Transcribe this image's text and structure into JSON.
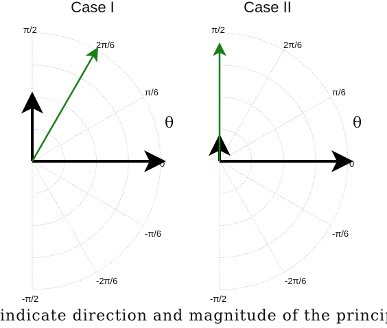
{
  "panels": [
    {
      "title": "Case I",
      "theta_label": "θ",
      "tick_labels": {
        "p90": "π/2",
        "p60": "2π/6",
        "p30": "π/6",
        "p0": "0",
        "m30": "-π/6",
        "m60": "-2π/6",
        "m90": "-π/2"
      },
      "vectors": [
        {
          "name": "black-horizontal",
          "color": "#000000",
          "angle_deg": 0,
          "magnitude": 1.0
        },
        {
          "name": "black-vertical",
          "color": "#000000",
          "angle_deg": 90,
          "magnitude": 0.5
        },
        {
          "name": "green-diagonal",
          "color": "#1a7f1a",
          "angle_deg": 60,
          "magnitude": 1.0
        }
      ]
    },
    {
      "title": "Case II",
      "theta_label": "θ",
      "tick_labels": {
        "p90": "π/2",
        "p60": "2π/6",
        "p30": "π/6",
        "p0": "0",
        "m30": "-π/6",
        "m60": "-2π/6",
        "m90": "-π/2"
      },
      "vectors": [
        {
          "name": "black-horizontal",
          "color": "#000000",
          "angle_deg": 0,
          "magnitude": 1.0
        },
        {
          "name": "black-vertical",
          "color": "#000000",
          "angle_deg": 90,
          "magnitude": 0.17
        },
        {
          "name": "green-vertical",
          "color": "#1a7f1a",
          "angle_deg": 90,
          "magnitude": 0.9
        }
      ]
    }
  ],
  "caption": "indicate direction and magnitude of the princip"
}
